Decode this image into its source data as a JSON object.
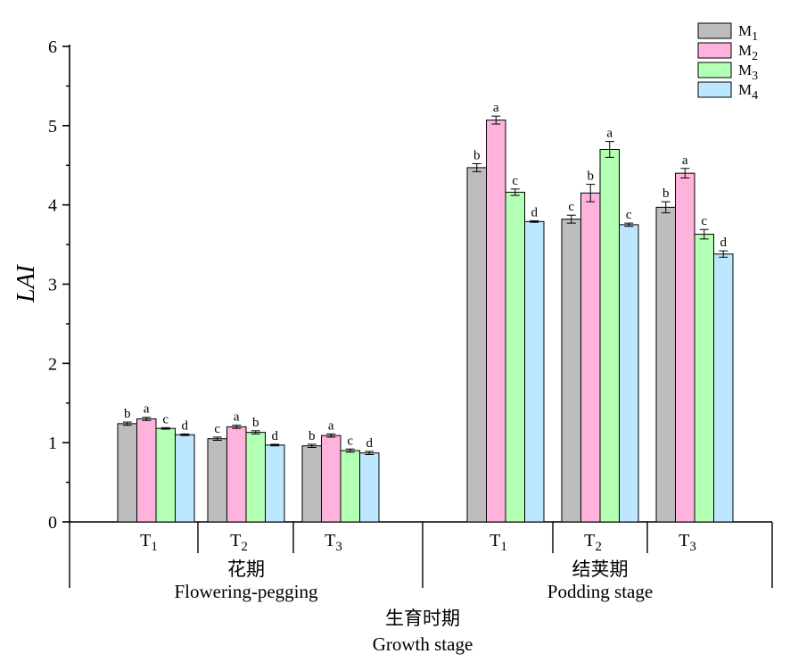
{
  "chart_data": {
    "type": "bar",
    "ylabel": "LAI",
    "ylim": [
      0,
      6
    ],
    "yticks": [
      "0",
      "1",
      "2",
      "3",
      "4",
      "5",
      "6"
    ],
    "grid": false,
    "legend_position": "top-right",
    "series": [
      {
        "name": "M",
        "sub": "1",
        "color": "#bdbdbd"
      },
      {
        "name": "M",
        "sub": "2",
        "color": "#ffb3dc"
      },
      {
        "name": "M",
        "sub": "3",
        "color": "#b3ffb3"
      },
      {
        "name": "M",
        "sub": "4",
        "color": "#bde6ff"
      }
    ],
    "stages": [
      {
        "name_cn": "花期",
        "name_en": "Flowering-pegging",
        "groups": [
          {
            "name": "T",
            "sub": "1",
            "values": [
              1.24,
              1.3,
              1.18,
              1.1
            ],
            "errors": [
              0.02,
              0.02,
              0.01,
              0.01
            ],
            "letters": [
              "b",
              "a",
              "c",
              "d"
            ]
          },
          {
            "name": "T",
            "sub": "2",
            "values": [
              1.05,
              1.2,
              1.13,
              0.97
            ],
            "errors": [
              0.02,
              0.02,
              0.02,
              0.01
            ],
            "letters": [
              "c",
              "a",
              "b",
              "d"
            ]
          },
          {
            "name": "T",
            "sub": "3",
            "values": [
              0.96,
              1.09,
              0.9,
              0.87
            ],
            "errors": [
              0.02,
              0.02,
              0.02,
              0.02
            ],
            "letters": [
              "b",
              "a",
              "c",
              "d"
            ]
          }
        ]
      },
      {
        "name_cn": "结荚期",
        "name_en": "Podding stage",
        "groups": [
          {
            "name": "T",
            "sub": "1",
            "values": [
              4.47,
              5.07,
              4.16,
              3.79
            ],
            "errors": [
              0.05,
              0.05,
              0.04,
              0.01
            ],
            "letters": [
              "b",
              "a",
              "c",
              "d"
            ]
          },
          {
            "name": "T",
            "sub": "2",
            "values": [
              3.82,
              4.15,
              4.7,
              3.75
            ],
            "errors": [
              0.05,
              0.11,
              0.1,
              0.02
            ],
            "letters": [
              "c",
              "b",
              "a",
              "c"
            ]
          },
          {
            "name": "T",
            "sub": "3",
            "values": [
              3.97,
              4.4,
              3.63,
              3.38
            ],
            "errors": [
              0.07,
              0.06,
              0.06,
              0.04
            ],
            "letters": [
              "b",
              "a",
              "c",
              "d"
            ]
          }
        ]
      }
    ],
    "xlabel_cn": "生育时期",
    "xlabel_en": "Growth stage"
  }
}
